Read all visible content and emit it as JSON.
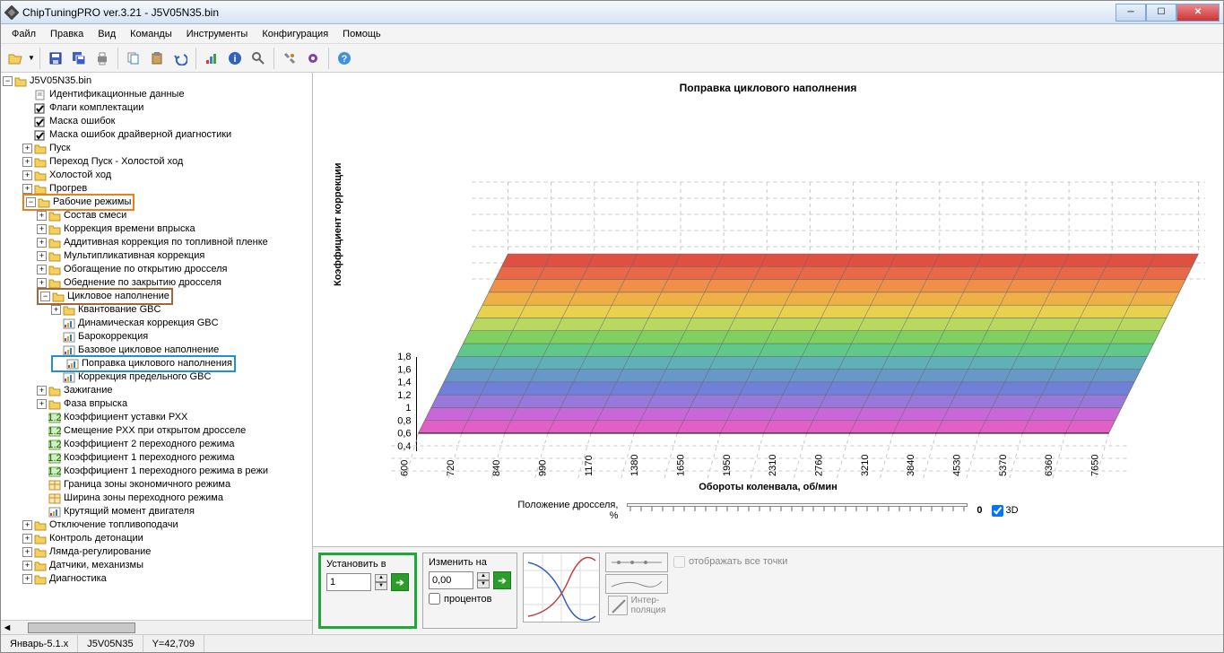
{
  "window": {
    "title": "ChipTuningPRO ver.3.21 - J5V05N35.bin"
  },
  "menu": [
    "Файл",
    "Правка",
    "Вид",
    "Команды",
    "Инструменты",
    "Конфигурация",
    "Помощь"
  ],
  "tree": {
    "root": "J5V05N35.bin",
    "items": [
      {
        "d": 1,
        "t": "Идентификационные данные",
        "i": "doc"
      },
      {
        "d": 1,
        "t": "Флаги комплектации",
        "i": "chk"
      },
      {
        "d": 1,
        "t": "Маска ошибок",
        "i": "chk"
      },
      {
        "d": 1,
        "t": "Маска ошибок драйверной диагностики",
        "i": "chk"
      },
      {
        "d": 1,
        "t": "Пуск",
        "i": "fld",
        "exp": "+"
      },
      {
        "d": 1,
        "t": "Переход Пуск - Холостой ход",
        "i": "fld",
        "exp": "+"
      },
      {
        "d": 1,
        "t": "Холостой ход",
        "i": "fld",
        "exp": "+"
      },
      {
        "d": 1,
        "t": "Прогрев",
        "i": "fld",
        "exp": "+"
      },
      {
        "d": 1,
        "t": "Рабочие режимы",
        "i": "fld",
        "exp": "-",
        "hl": "orange"
      },
      {
        "d": 2,
        "t": "Состав смеси",
        "i": "fld",
        "exp": "+"
      },
      {
        "d": 2,
        "t": "Коррекция времени впрыска",
        "i": "fld",
        "exp": "+"
      },
      {
        "d": 2,
        "t": "Аддитивная коррекция по топливной пленке",
        "i": "fld",
        "exp": "+"
      },
      {
        "d": 2,
        "t": "Мультипликативная коррекция",
        "i": "fld",
        "exp": "+"
      },
      {
        "d": 2,
        "t": "Обогащение по открытию дросселя",
        "i": "fld",
        "exp": "+"
      },
      {
        "d": 2,
        "t": "Обеднение по закрытию дросселя",
        "i": "fld",
        "exp": "+"
      },
      {
        "d": 2,
        "t": "Цикловое наполнение",
        "i": "fld",
        "exp": "-",
        "hl": "brown"
      },
      {
        "d": 3,
        "t": "Квантование GBC",
        "i": "fld",
        "exp": "+"
      },
      {
        "d": 3,
        "t": "Динамическая коррекция GBC",
        "i": "map"
      },
      {
        "d": 3,
        "t": "Барокоррекция",
        "i": "map"
      },
      {
        "d": 3,
        "t": "Базовое цикловое наполнение",
        "i": "map"
      },
      {
        "d": 3,
        "t": "Поправка циклового наполнения",
        "i": "map",
        "hl": "blue",
        "sel": true
      },
      {
        "d": 3,
        "t": "Коррекция предельного GBC",
        "i": "map"
      },
      {
        "d": 2,
        "t": "Зажигание",
        "i": "fld",
        "exp": "+"
      },
      {
        "d": 2,
        "t": "Фаза впрыска",
        "i": "fld",
        "exp": "+"
      },
      {
        "d": 2,
        "t": "Коэффициент уставки РХХ",
        "i": "t12"
      },
      {
        "d": 2,
        "t": "Смещение РХХ при открытом дросселе",
        "i": "t12"
      },
      {
        "d": 2,
        "t": "Коэффициент 2 переходного режима",
        "i": "t12"
      },
      {
        "d": 2,
        "t": "Коэффициент 1 переходного режима",
        "i": "t12"
      },
      {
        "d": 2,
        "t": "Коэффициент 1 переходного режима в режи",
        "i": "t12"
      },
      {
        "d": 2,
        "t": "Граница зоны экономичного режима",
        "i": "tbl"
      },
      {
        "d": 2,
        "t": "Ширина зоны переходного режима",
        "i": "tbl"
      },
      {
        "d": 2,
        "t": "Крутящий момент двигателя",
        "i": "map"
      },
      {
        "d": 1,
        "t": "Отключение топливоподачи",
        "i": "fld",
        "exp": "+"
      },
      {
        "d": 1,
        "t": "Контроль детонации",
        "i": "fld",
        "exp": "+"
      },
      {
        "d": 1,
        "t": "Лямда-регулирование",
        "i": "fld",
        "exp": "+"
      },
      {
        "d": 1,
        "t": "Датчики, механизмы",
        "i": "fld",
        "exp": "+"
      },
      {
        "d": 1,
        "t": "Диагностика",
        "i": "fld",
        "exp": "+"
      }
    ]
  },
  "chart": {
    "title": "Поправка циклового наполнения",
    "ylabel": "Коэффициент коррекции",
    "xlabel": "Обороты коленвала, об/мин",
    "yticks": [
      "0,4",
      "0,6",
      "0,8",
      "1",
      "1,2",
      "1,4",
      "1,6",
      "1,8"
    ],
    "xticks": [
      "600",
      "720",
      "840",
      "990",
      "1170",
      "1380",
      "1650",
      "1950",
      "2310",
      "2760",
      "3210",
      "3840",
      "4530",
      "5370",
      "6360",
      "7650"
    ],
    "band_colors": [
      "#e060c8",
      "#c868d8",
      "#9878d8",
      "#7080d8",
      "#6898c8",
      "#60b0b8",
      "#60c888",
      "#80d060",
      "#b8d860",
      "#e8d050",
      "#f0b048",
      "#f09048",
      "#e86848",
      "#e05040"
    ],
    "grid_color": "#b0b0b0",
    "dash_color": "#c8c8c8",
    "bg": "#ffffff"
  },
  "slider": {
    "label_l1": "Положение дросселя,",
    "label_l2": "%",
    "value": "0",
    "cb_label": "3D"
  },
  "controls": {
    "set": {
      "label": "Установить в",
      "value": "1"
    },
    "change": {
      "label": "Изменить на",
      "value": "0,00",
      "percent_label": "процентов"
    },
    "interp_label": "Интер-\nполяция",
    "showpts_label": "отображать все точки"
  },
  "status": {
    "c1": "Январь-5.1.x",
    "c2": "J5V05N35",
    "c3": "Y=42,709"
  }
}
